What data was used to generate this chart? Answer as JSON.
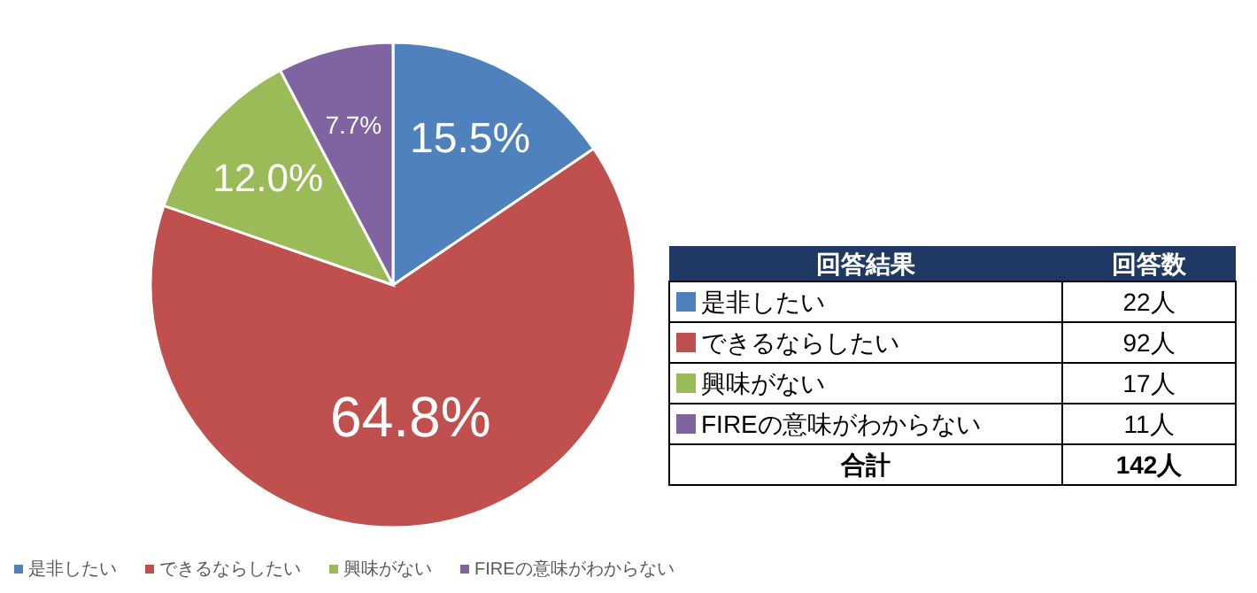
{
  "chart_data": [
    {
      "type": "pie",
      "categories": [
        "是非したい",
        "できるならしたい",
        "興味がない",
        "FIREの意味がわからない"
      ],
      "values": [
        15.5,
        64.8,
        12.0,
        7.7
      ],
      "colors": [
        "#4f81bd",
        "#c0504d",
        "#9bbb59",
        "#8064a2"
      ],
      "value_labels": [
        "15.5%",
        "64.8%",
        "12.0%",
        "7.7%"
      ],
      "legend": "bottom"
    },
    {
      "type": "other",
      "categories": [
        "是非したい",
        "できるならしたい",
        "興味がない",
        "FIREの意味がわからない"
      ],
      "colors": [
        "#4f81bd",
        "#c0504d",
        "#9bbb59",
        "#8064a2"
      ],
      "value_labels": [
        "22人",
        "92人",
        "17人",
        "11人"
      ],
      "annotations": [
        "回答結果",
        "回答数",
        "合計",
        "142人"
      ]
    }
  ]
}
